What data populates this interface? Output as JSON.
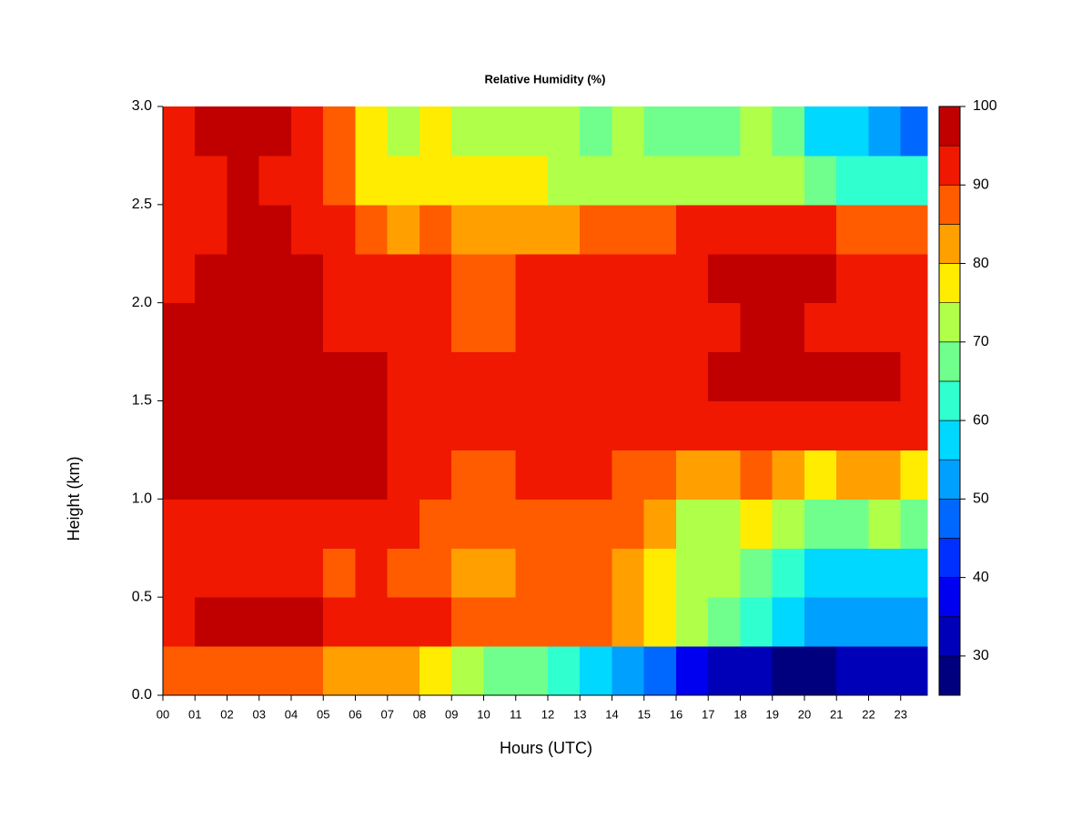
{
  "chart_data": {
    "type": "heatmap",
    "title": "Relative Humidity (%)",
    "x_label": "Hours (UTC)",
    "y_label": "Height (km)",
    "x": [
      0,
      1,
      2,
      3,
      4,
      5,
      6,
      7,
      8,
      9,
      10,
      11,
      12,
      13,
      14,
      15,
      16,
      17,
      18,
      19,
      20,
      21,
      22,
      23
    ],
    "y": [
      0,
      0.25,
      0.5,
      0.75,
      1,
      1.25,
      1.5,
      1.75,
      2,
      2.25,
      2.5,
      2.75
    ],
    "z": [
      [
        88,
        85,
        85,
        85,
        85,
        83,
        82,
        80,
        75,
        72,
        68,
        68,
        64,
        58,
        52,
        46,
        35,
        32,
        30,
        28,
        28,
        30,
        30,
        32
      ],
      [
        92,
        95,
        96,
        95,
        95,
        93,
        94,
        94,
        90,
        86,
        85,
        88,
        88,
        86,
        82,
        75,
        72,
        68,
        62,
        56,
        52,
        52,
        52,
        50
      ],
      [
        90,
        90,
        92,
        90,
        90,
        88,
        90,
        88,
        86,
        82,
        84,
        86,
        86,
        85,
        82,
        78,
        72,
        70,
        68,
        62,
        58,
        58,
        58,
        56
      ],
      [
        92,
        92,
        94,
        94,
        93,
        92,
        93,
        90,
        88,
        85,
        86,
        88,
        88,
        88,
        85,
        80,
        72,
        72,
        75,
        70,
        68,
        68,
        70,
        68
      ],
      [
        97,
        97,
        97,
        97,
        96,
        95,
        95,
        93,
        91,
        88,
        88,
        90,
        90,
        90,
        88,
        85,
        80,
        82,
        85,
        82,
        78,
        80,
        83,
        78
      ],
      [
        98,
        98,
        98,
        98,
        97,
        96,
        95,
        94,
        92,
        90,
        90,
        91,
        91,
        92,
        92,
        90,
        90,
        92,
        93,
        92,
        90,
        90,
        92,
        90
      ],
      [
        98,
        98,
        98,
        98,
        97,
        96,
        95,
        94,
        93,
        90,
        90,
        92,
        92,
        93,
        93,
        93,
        94,
        95,
        96,
        96,
        95,
        95,
        96,
        94
      ],
      [
        95,
        96,
        97,
        97,
        96,
        93,
        92,
        92,
        90,
        88,
        88,
        90,
        90,
        91,
        92,
        92,
        93,
        94,
        95,
        95,
        94,
        93,
        93,
        92
      ],
      [
        94,
        95,
        97,
        97,
        95,
        92,
        90,
        90,
        90,
        88,
        88,
        90,
        90,
        92,
        92,
        92,
        94,
        95,
        96,
        96,
        95,
        94,
        93,
        92
      ],
      [
        93,
        94,
        96,
        95,
        93,
        90,
        85,
        83,
        85,
        82,
        80,
        83,
        84,
        85,
        88,
        88,
        90,
        92,
        93,
        92,
        90,
        88,
        88,
        87
      ],
      [
        92,
        93,
        95,
        93,
        92,
        88,
        78,
        75,
        78,
        75,
        75,
        75,
        73,
        72,
        74,
        72,
        70,
        72,
        72,
        70,
        66,
        63,
        62,
        60
      ],
      [
        92,
        95,
        97,
        95,
        93,
        88,
        75,
        72,
        75,
        72,
        70,
        72,
        70,
        68,
        70,
        68,
        65,
        68,
        70,
        65,
        58,
        55,
        52,
        48
      ]
    ],
    "xlim": [
      0,
      23.83
    ],
    "ylim": [
      0,
      3
    ],
    "xticks": [
      {
        "value": 0,
        "label": "00"
      },
      {
        "value": 1,
        "label": "01"
      },
      {
        "value": 2,
        "label": "02"
      },
      {
        "value": 3,
        "label": "03"
      },
      {
        "value": 4,
        "label": "04"
      },
      {
        "value": 5,
        "label": "05"
      },
      {
        "value": 6,
        "label": "06"
      },
      {
        "value": 7,
        "label": "07"
      },
      {
        "value": 8,
        "label": "08"
      },
      {
        "value": 9,
        "label": "09"
      },
      10,
      11,
      12,
      13,
      14,
      15,
      16,
      17,
      18,
      19,
      20,
      21,
      22,
      23
    ],
    "yticks": [
      {
        "value": 0,
        "label": "0.0"
      },
      0.5,
      {
        "value": 1,
        "label": "1.0"
      },
      1.5,
      {
        "value": 2,
        "label": "2.0"
      },
      2.5,
      {
        "value": 3,
        "label": "3.0"
      }
    ],
    "levels": [
      25,
      30,
      35,
      40,
      45,
      50,
      55,
      60,
      65,
      70,
      75,
      80,
      85,
      90,
      95,
      100
    ],
    "colors": [
      "#00007f",
      "#0000b8",
      "#0000f0",
      "#0030ff",
      "#0068ff",
      "#00a0ff",
      "#00d8ff",
      "#30ffd0",
      "#70ff8c",
      "#b0ff48",
      "#ffec00",
      "#ffa000",
      "#ff5c00",
      "#f01800",
      "#c00000",
      "#800000"
    ],
    "colorbar_ticks": [
      30,
      40,
      50,
      60,
      70,
      80,
      90,
      100
    ]
  }
}
